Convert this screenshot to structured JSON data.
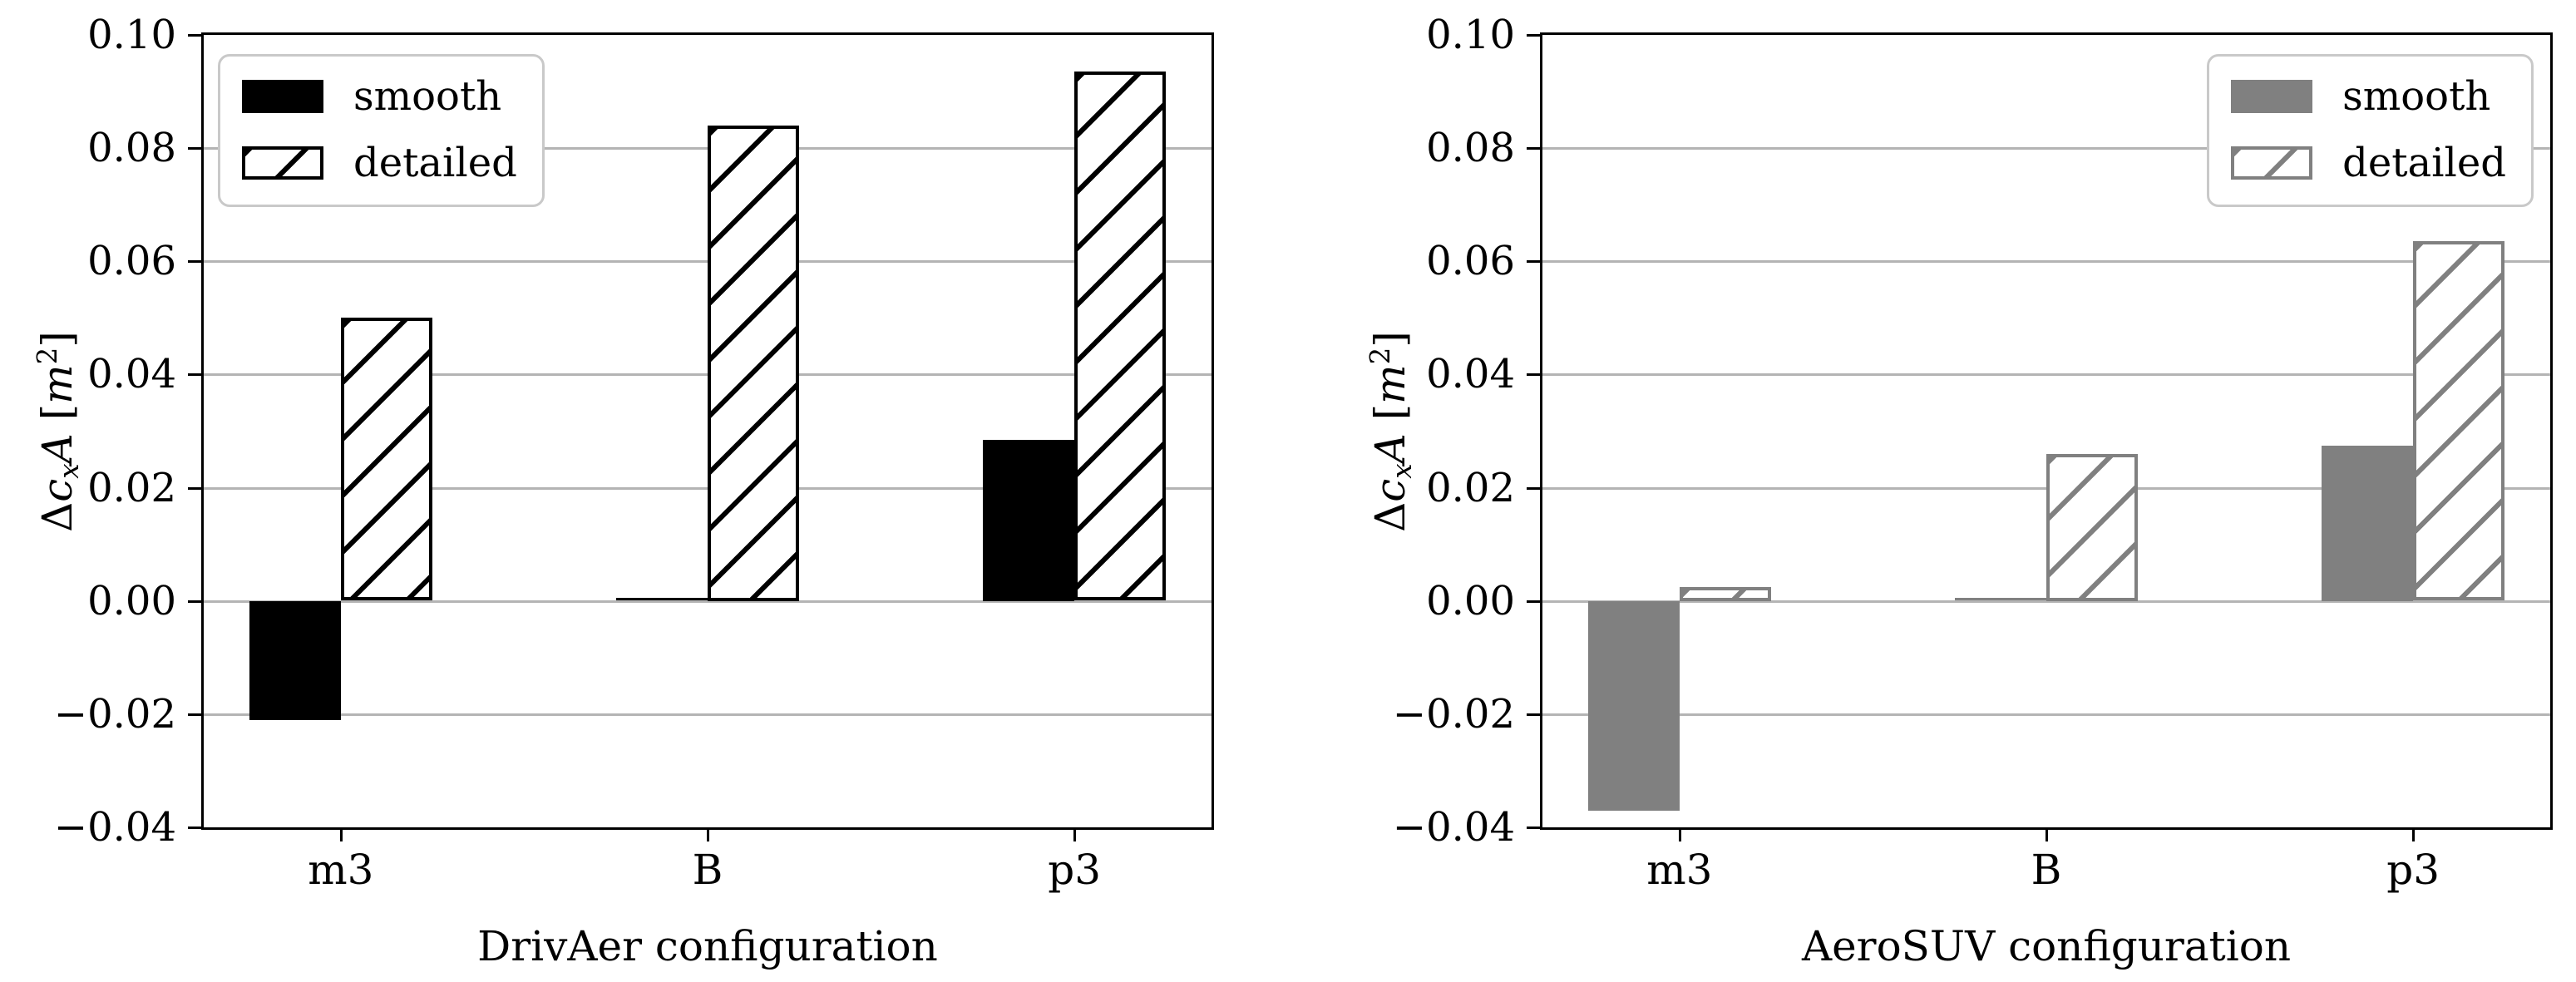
{
  "figure": {
    "background": "#ffffff",
    "text_color": "#000000",
    "gridline_color": "#b4b4b4",
    "spine_color": "#000000",
    "legend_edge_color": "#c9c9c9"
  },
  "ylabel_parts": [
    {
      "t": "Δ",
      "s": "n"
    },
    {
      "t": "c",
      "s": "i"
    },
    {
      "t": "x",
      "s": "sub"
    },
    {
      "t": "A",
      "s": "i"
    },
    {
      "t": " [",
      "s": "n"
    },
    {
      "t": "m",
      "s": "i"
    },
    {
      "t": "2",
      "s": "sup"
    },
    {
      "t": "]",
      "s": "n"
    }
  ],
  "chart_data": [
    {
      "type": "bar",
      "title": "",
      "xlabel": "DrivAer configuration",
      "ylabel": "Δc_xA [m²]",
      "categories": [
        "m3",
        "B",
        "p3"
      ],
      "series": [
        {
          "name": "smooth",
          "values": [
            -0.021,
            0.0005,
            0.0285
          ],
          "fill": "#000000",
          "edge": "#000000",
          "hatch": null
        },
        {
          "name": "detailed",
          "values": [
            0.05,
            0.084,
            0.0935
          ],
          "fill": "#ffffff",
          "edge": "#000000",
          "hatch": "/"
        }
      ],
      "ylim": [
        -0.04,
        0.1
      ],
      "yticks": [
        0.1,
        0.08,
        0.06,
        0.04,
        0.02,
        0.0,
        -0.02,
        -0.04
      ],
      "ytick_labels": [
        "0.10",
        "0.08",
        "0.06",
        "0.04",
        "0.02",
        "0.00",
        "−0.02",
        "−0.04"
      ],
      "grid": true,
      "legend_loc": "upper left",
      "legend_entries": [
        "smooth",
        "detailed"
      ]
    },
    {
      "type": "bar",
      "title": "",
      "xlabel": "AeroSUV configuration",
      "ylabel": "Δc_xA [m²]",
      "categories": [
        "m3",
        "B",
        "p3"
      ],
      "series": [
        {
          "name": "smooth",
          "values": [
            -0.037,
            0.0005,
            0.0275
          ],
          "fill": "#808080",
          "edge": "#808080",
          "hatch": null
        },
        {
          "name": "detailed",
          "values": [
            0.0025,
            0.026,
            0.0635
          ],
          "fill": "#ffffff",
          "edge": "#808080",
          "hatch": "/"
        }
      ],
      "ylim": [
        -0.04,
        0.1
      ],
      "yticks": [
        0.1,
        0.08,
        0.06,
        0.04,
        0.02,
        0.0,
        -0.02,
        -0.04
      ],
      "ytick_labels": [
        "0.10",
        "0.08",
        "0.06",
        "0.04",
        "0.02",
        "0.00",
        "−0.02",
        "−0.04"
      ],
      "grid": true,
      "legend_loc": "upper right",
      "legend_entries": [
        "smooth",
        "detailed"
      ]
    }
  ]
}
